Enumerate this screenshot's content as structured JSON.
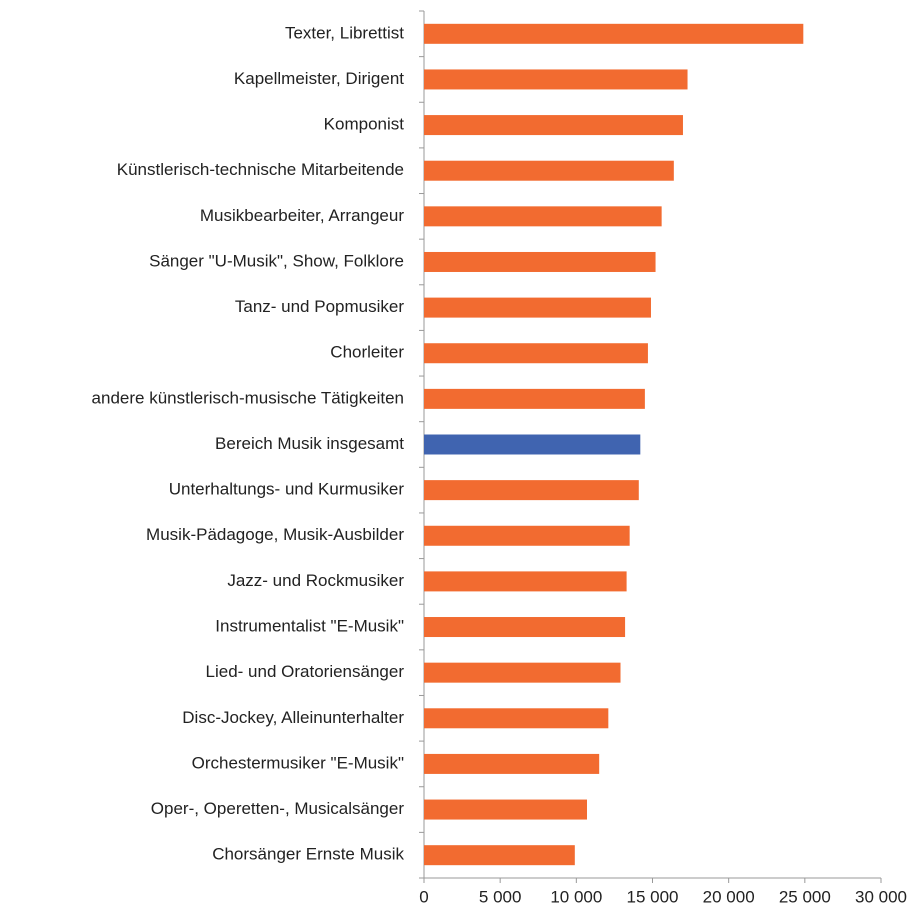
{
  "chart_data": {
    "type": "barh",
    "categories": [
      "Texter, Librettist",
      "Kapellmeister, Dirigent",
      "Komponist",
      "Künstlerisch-technische Mitarbeitende",
      "Musikbearbeiter, Arrangeur",
      "Sänger \"U-Musik\", Show, Folklore",
      "Tanz- und Popmusiker",
      "Chorleiter",
      "andere künstlerisch-musische Tätigkeiten",
      "Bereich Musik insgesamt",
      "Unterhaltungs- und Kurmusiker",
      "Musik-Pädagoge, Musik-Ausbilder",
      "Jazz- und Rockmusiker",
      "Instrumentalist \"E-Musik\"",
      "Lied- und Oratoriensänger",
      "Disc-Jockey, Alleinunterhalter",
      "Orchestermusiker \"E-Musik\"",
      "Oper-, Operetten-, Musicalsänger",
      "Chorsänger Ernste Musik"
    ],
    "values": [
      24900,
      17300,
      17000,
      16400,
      15600,
      15200,
      14900,
      14700,
      14500,
      14200,
      14100,
      13500,
      13300,
      13200,
      12900,
      12100,
      11500,
      10700,
      9900
    ],
    "colors": [
      "#f26b30",
      "#f26b30",
      "#f26b30",
      "#f26b30",
      "#f26b30",
      "#f26b30",
      "#f26b30",
      "#f26b30",
      "#f26b30",
      "#4064b0",
      "#f26b30",
      "#f26b30",
      "#f26b30",
      "#f26b30",
      "#f26b30",
      "#f26b30",
      "#f26b30",
      "#f26b30",
      "#f26b30"
    ],
    "xlim": [
      0,
      30000
    ],
    "xticks": [
      0,
      {
        "value": 5000,
        "label": "5 000"
      },
      {
        "value": 10000,
        "label": "10 000"
      },
      {
        "value": 15000,
        "label": "15 000"
      },
      {
        "value": 20000,
        "label": "20 000"
      },
      {
        "value": 25000,
        "label": "25 000"
      },
      {
        "value": 30000,
        "label": "30 000"
      }
    ]
  }
}
